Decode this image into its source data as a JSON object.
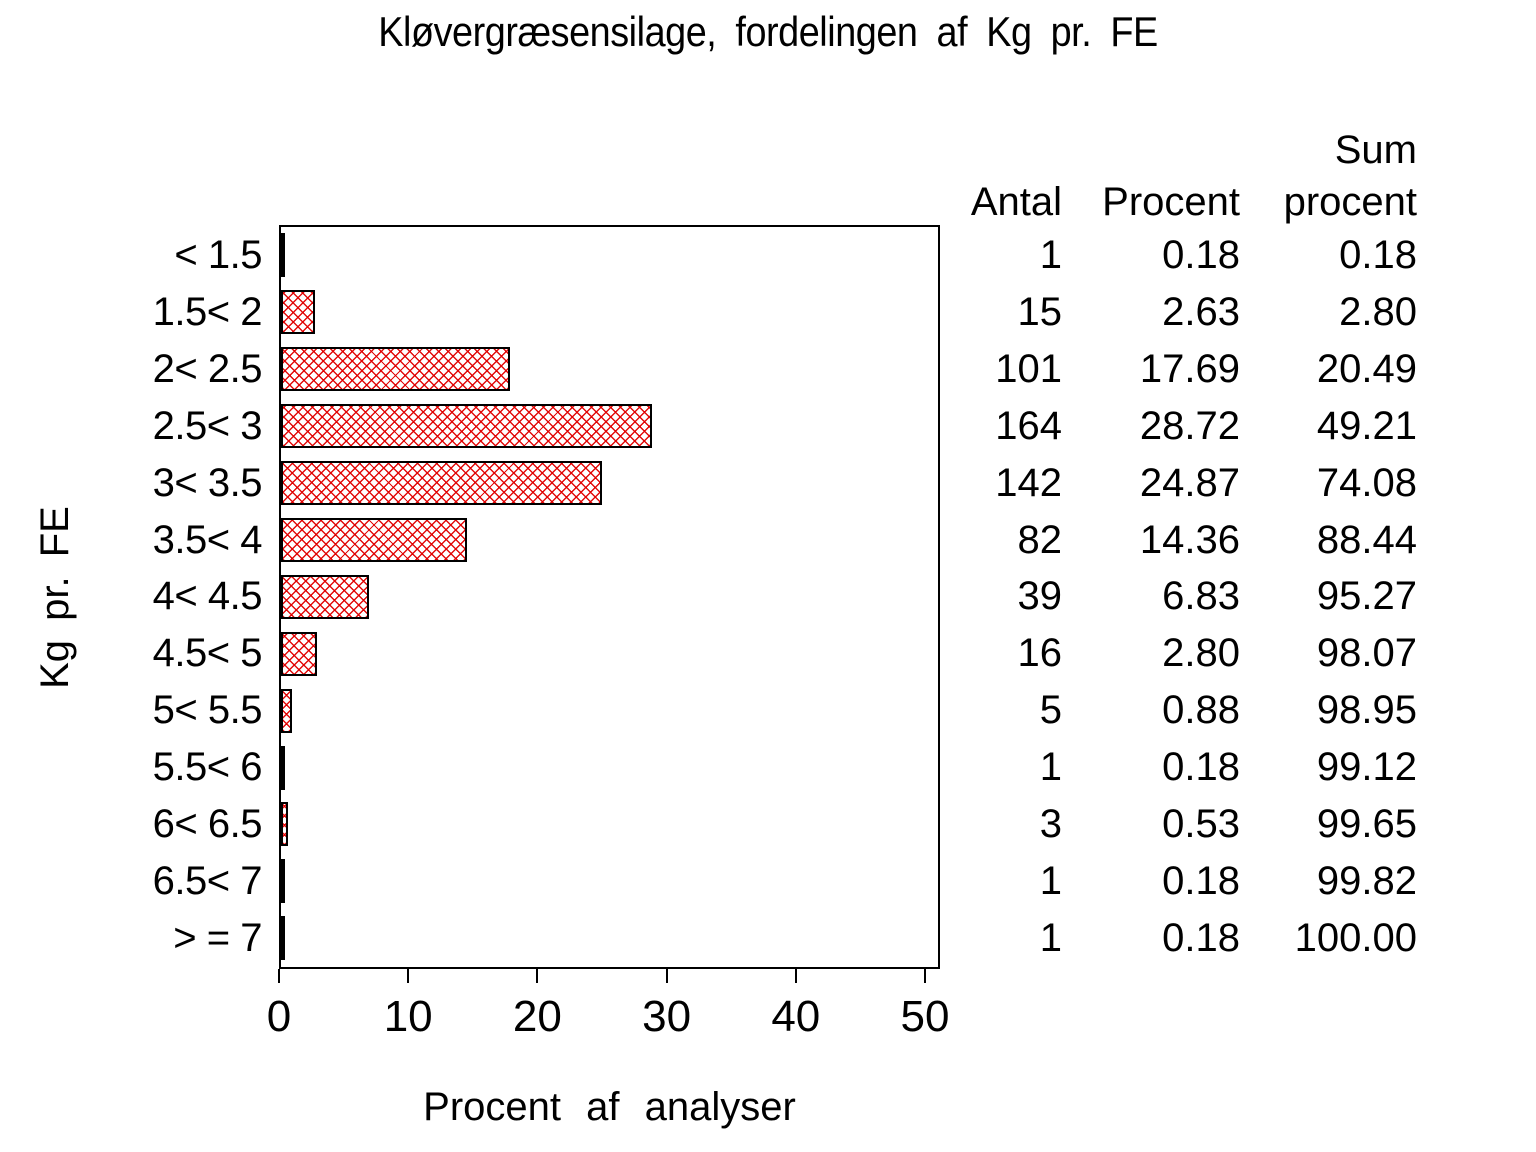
{
  "title": "Kløvergræsensilage, fordelingen af Kg pr. FE",
  "chart_data": {
    "type": "bar",
    "orientation": "horizontal",
    "title": "Kløvergræsensilage, fordelingen af Kg pr. FE",
    "categories": [
      "< 1.5",
      "1.5< 2",
      "2< 2.5",
      "2.5< 3",
      "3< 3.5",
      "3.5< 4",
      "4< 4.5",
      "4.5< 5",
      "5< 5.5",
      "5.5< 6",
      "6< 6.5",
      "6.5< 7",
      "> = 7"
    ],
    "values": [
      0.18,
      2.63,
      17.69,
      28.72,
      24.87,
      14.36,
      6.83,
      2.8,
      0.88,
      0.18,
      0.53,
      0.18,
      0.18
    ],
    "xlabel": "Procent af analyser",
    "ylabel": "Kg pr. FE",
    "xlim": [
      0,
      50
    ],
    "xticks": [
      0,
      10,
      20,
      30,
      40,
      50
    ],
    "grid": false,
    "bar_fill_pattern": "red diagonal crosshatch on white",
    "bar_pattern_color": "#e00000",
    "bar_border_color": "#000000"
  },
  "table": {
    "headers": {
      "antal": "Antal",
      "procent": "Procent",
      "sum_line1": "Sum",
      "sum_line2": "procent"
    },
    "rows": [
      {
        "antal": "1",
        "procent": "0.18",
        "sum": "0.18"
      },
      {
        "antal": "15",
        "procent": "2.63",
        "sum": "2.80"
      },
      {
        "antal": "101",
        "procent": "17.69",
        "sum": "20.49"
      },
      {
        "antal": "164",
        "procent": "28.72",
        "sum": "49.21"
      },
      {
        "antal": "142",
        "procent": "24.87",
        "sum": "74.08"
      },
      {
        "antal": "82",
        "procent": "14.36",
        "sum": "88.44"
      },
      {
        "antal": "39",
        "procent": "6.83",
        "sum": "95.27"
      },
      {
        "antal": "16",
        "procent": "2.80",
        "sum": "98.07"
      },
      {
        "antal": "5",
        "procent": "0.88",
        "sum": "98.95"
      },
      {
        "antal": "1",
        "procent": "0.18",
        "sum": "99.12"
      },
      {
        "antal": "3",
        "procent": "0.53",
        "sum": "99.65"
      },
      {
        "antal": "1",
        "procent": "0.18",
        "sum": "99.82"
      },
      {
        "antal": "1",
        "procent": "0.18",
        "sum": "100.00"
      }
    ]
  }
}
